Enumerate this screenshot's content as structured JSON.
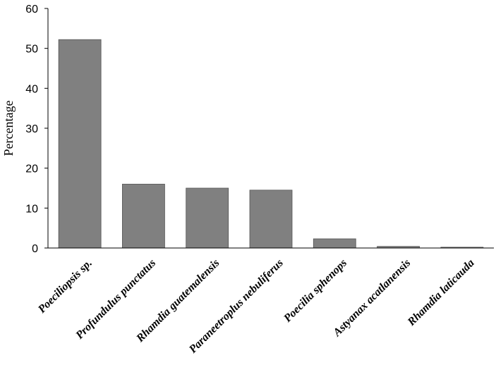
{
  "chart_data": {
    "type": "bar",
    "title": "",
    "xlabel": "",
    "ylabel": "Percentage",
    "ylim": [
      0,
      60
    ],
    "yticks": [
      0,
      10,
      20,
      30,
      40,
      50,
      60
    ],
    "grid": false,
    "legend": "none",
    "categories": [
      "Poeciliopsis sp.",
      "Profundulus punctatus",
      "Rhamdia guatemalensis",
      "Paraneetroplus nebuliferus",
      "Poecilia sphenops",
      "Astyanax acatlanensis",
      "Rhamdia laticauda"
    ],
    "values": [
      52.2,
      16.0,
      15.0,
      14.5,
      2.3,
      0.4,
      0.2
    ],
    "colors": {
      "bar_fill": "#808080",
      "bar_stroke": "#555555",
      "axis": "#000000"
    }
  }
}
